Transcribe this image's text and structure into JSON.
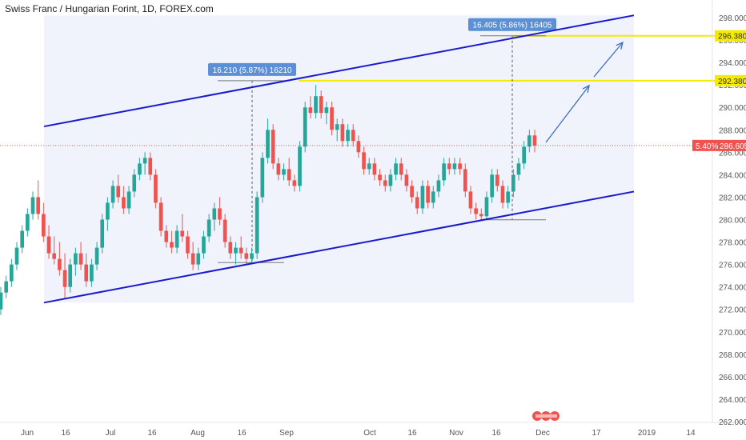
{
  "colors": {
    "up": "#26a69a",
    "down": "#ef5350",
    "channel": "#1a1acd",
    "channel_fill": "#eef2fb",
    "level_line": "#f5ea00",
    "measure_box": "#5b8fd6",
    "current_price": "#ef5350",
    "arrow": "#3b6fc2",
    "axis_text": "#555555"
  },
  "chart_data": {
    "type": "candlestick",
    "title": "Swiss Franc / Hungarian Forint, 1D, FOREX.com",
    "ylim": [
      261,
      299
    ],
    "y_ticks": [
      "262.000",
      "264.000",
      "266.000",
      "268.000",
      "270.000",
      "272.000",
      "274.000",
      "276.000",
      "278.000",
      "280.000",
      "282.000",
      "284.000",
      "286.000",
      "288.000",
      "290.000",
      "292.000",
      "294.000",
      "296.000",
      "298.000"
    ],
    "x_ticks": [
      "Jun",
      "16",
      "Jul",
      "16",
      "Aug",
      "16",
      "Sep",
      "Oct",
      "16",
      "Nov",
      "16",
      "Dec",
      "17",
      "2019",
      "14"
    ],
    "current_price": {
      "value": 286.605,
      "label": "286.605",
      "change_label": "5.40%"
    },
    "levels": [
      {
        "value": 296.38,
        "label": "296.380"
      },
      {
        "value": 292.38,
        "label": "292.380"
      }
    ],
    "measurements": [
      {
        "label": "16.210 (5.87%) 16210",
        "from": 276.17,
        "to": 292.38
      },
      {
        "label": "16.405 (5.86%) 16405",
        "from": 279.98,
        "to": 296.38
      }
    ],
    "channel": {
      "upper": [
        {
          "x": "Jun 11",
          "y": 288.3
        },
        {
          "x": "Dec 27",
          "y": 298.2
        }
      ],
      "lower": [
        {
          "x": "Jun 11",
          "y": 272.6
        },
        {
          "x": "Dec 27",
          "y": 282.5
        }
      ]
    },
    "candles": [
      {
        "o": 272.0,
        "h": 274.0,
        "l": 271.5,
        "c": 273.5
      },
      {
        "o": 273.5,
        "h": 275.0,
        "l": 273.0,
        "c": 274.5
      },
      {
        "o": 274.5,
        "h": 276.5,
        "l": 274.0,
        "c": 276.0
      },
      {
        "o": 276.0,
        "h": 278.0,
        "l": 275.5,
        "c": 277.5
      },
      {
        "o": 277.5,
        "h": 279.5,
        "l": 277.0,
        "c": 279.0
      },
      {
        "o": 279.0,
        "h": 281.0,
        "l": 278.5,
        "c": 280.5
      },
      {
        "o": 280.5,
        "h": 282.5,
        "l": 280.0,
        "c": 282.0
      },
      {
        "o": 282.0,
        "h": 283.5,
        "l": 280.0,
        "c": 280.5
      },
      {
        "o": 280.5,
        "h": 281.5,
        "l": 278.0,
        "c": 278.5
      },
      {
        "o": 278.5,
        "h": 279.5,
        "l": 276.5,
        "c": 277.0
      },
      {
        "o": 277.0,
        "h": 278.5,
        "l": 276.0,
        "c": 276.5
      },
      {
        "o": 276.5,
        "h": 278.0,
        "l": 275.0,
        "c": 275.5
      },
      {
        "o": 275.5,
        "h": 277.0,
        "l": 273.0,
        "c": 274.0
      },
      {
        "o": 274.0,
        "h": 276.5,
        "l": 273.5,
        "c": 276.0
      },
      {
        "o": 276.0,
        "h": 277.5,
        "l": 275.0,
        "c": 277.0
      },
      {
        "o": 277.0,
        "h": 278.0,
        "l": 275.5,
        "c": 276.0
      },
      {
        "o": 276.0,
        "h": 277.0,
        "l": 274.0,
        "c": 274.5
      },
      {
        "o": 274.5,
        "h": 276.5,
        "l": 274.0,
        "c": 276.0
      },
      {
        "o": 276.0,
        "h": 278.0,
        "l": 275.5,
        "c": 277.5
      },
      {
        "o": 277.5,
        "h": 280.5,
        "l": 277.0,
        "c": 280.0
      },
      {
        "o": 280.0,
        "h": 282.0,
        "l": 279.0,
        "c": 281.5
      },
      {
        "o": 281.5,
        "h": 283.5,
        "l": 281.0,
        "c": 283.0
      },
      {
        "o": 283.0,
        "h": 284.0,
        "l": 281.5,
        "c": 282.0
      },
      {
        "o": 282.0,
        "h": 283.0,
        "l": 280.5,
        "c": 281.0
      },
      {
        "o": 281.0,
        "h": 283.0,
        "l": 280.5,
        "c": 282.5
      },
      {
        "o": 282.5,
        "h": 284.5,
        "l": 282.0,
        "c": 284.0
      },
      {
        "o": 284.0,
        "h": 285.5,
        "l": 283.5,
        "c": 285.0
      },
      {
        "o": 285.0,
        "h": 286.0,
        "l": 284.0,
        "c": 285.5
      },
      {
        "o": 285.5,
        "h": 286.0,
        "l": 283.5,
        "c": 284.0
      },
      {
        "o": 284.0,
        "h": 284.5,
        "l": 281.0,
        "c": 281.5
      },
      {
        "o": 281.5,
        "h": 282.0,
        "l": 278.5,
        "c": 279.0
      },
      {
        "o": 279.0,
        "h": 279.5,
        "l": 277.5,
        "c": 278.0
      },
      {
        "o": 278.0,
        "h": 279.0,
        "l": 277.0,
        "c": 277.5
      },
      {
        "o": 277.5,
        "h": 279.5,
        "l": 277.0,
        "c": 279.0
      },
      {
        "o": 279.0,
        "h": 280.5,
        "l": 278.0,
        "c": 278.5
      },
      {
        "o": 278.5,
        "h": 279.0,
        "l": 276.5,
        "c": 277.0
      },
      {
        "o": 277.0,
        "h": 278.0,
        "l": 275.5,
        "c": 276.0
      },
      {
        "o": 276.0,
        "h": 277.5,
        "l": 275.5,
        "c": 277.0
      },
      {
        "o": 277.0,
        "h": 279.0,
        "l": 276.5,
        "c": 278.5
      },
      {
        "o": 278.5,
        "h": 280.5,
        "l": 278.0,
        "c": 280.0
      },
      {
        "o": 280.0,
        "h": 281.5,
        "l": 279.0,
        "c": 281.0
      },
      {
        "o": 281.0,
        "h": 282.0,
        "l": 279.5,
        "c": 280.0
      },
      {
        "o": 280.0,
        "h": 280.5,
        "l": 277.5,
        "c": 278.0
      },
      {
        "o": 278.0,
        "h": 278.5,
        "l": 276.5,
        "c": 277.0
      },
      {
        "o": 277.0,
        "h": 278.0,
        "l": 276.0,
        "c": 277.5
      },
      {
        "o": 277.5,
        "h": 278.5,
        "l": 276.5,
        "c": 277.0
      },
      {
        "o": 277.0,
        "h": 277.5,
        "l": 276.0,
        "c": 276.5
      },
      {
        "o": 276.5,
        "h": 277.5,
        "l": 276.0,
        "c": 277.0
      },
      {
        "o": 277.0,
        "h": 282.5,
        "l": 276.5,
        "c": 282.0
      },
      {
        "o": 282.0,
        "h": 286.0,
        "l": 281.5,
        "c": 285.5
      },
      {
        "o": 285.5,
        "h": 289.0,
        "l": 285.0,
        "c": 288.0
      },
      {
        "o": 288.0,
        "h": 288.5,
        "l": 284.5,
        "c": 285.0
      },
      {
        "o": 285.0,
        "h": 285.5,
        "l": 283.5,
        "c": 284.0
      },
      {
        "o": 284.0,
        "h": 285.0,
        "l": 283.5,
        "c": 284.5
      },
      {
        "o": 284.5,
        "h": 285.5,
        "l": 283.0,
        "c": 283.5
      },
      {
        "o": 283.5,
        "h": 284.0,
        "l": 282.5,
        "c": 283.0
      },
      {
        "o": 283.0,
        "h": 287.0,
        "l": 282.5,
        "c": 286.5
      },
      {
        "o": 286.5,
        "h": 290.5,
        "l": 286.0,
        "c": 290.0
      },
      {
        "o": 290.0,
        "h": 291.0,
        "l": 289.0,
        "c": 289.5
      },
      {
        "o": 289.5,
        "h": 292.0,
        "l": 289.0,
        "c": 291.0
      },
      {
        "o": 291.0,
        "h": 291.5,
        "l": 289.0,
        "c": 289.5
      },
      {
        "o": 289.5,
        "h": 290.5,
        "l": 288.5,
        "c": 290.0
      },
      {
        "o": 290.0,
        "h": 290.5,
        "l": 287.5,
        "c": 288.0
      },
      {
        "o": 288.0,
        "h": 289.0,
        "l": 287.0,
        "c": 288.5
      },
      {
        "o": 288.5,
        "h": 289.0,
        "l": 286.5,
        "c": 287.0
      },
      {
        "o": 287.0,
        "h": 288.5,
        "l": 286.5,
        "c": 288.0
      },
      {
        "o": 288.0,
        "h": 288.5,
        "l": 286.5,
        "c": 287.0
      },
      {
        "o": 287.0,
        "h": 287.5,
        "l": 285.5,
        "c": 286.0
      },
      {
        "o": 286.0,
        "h": 286.5,
        "l": 284.0,
        "c": 284.5
      },
      {
        "o": 284.5,
        "h": 285.5,
        "l": 284.0,
        "c": 285.0
      },
      {
        "o": 285.0,
        "h": 285.5,
        "l": 283.5,
        "c": 284.0
      },
      {
        "o": 284.0,
        "h": 284.5,
        "l": 283.0,
        "c": 283.5
      },
      {
        "o": 283.5,
        "h": 284.0,
        "l": 282.5,
        "c": 283.0
      },
      {
        "o": 283.0,
        "h": 284.5,
        "l": 282.5,
        "c": 284.0
      },
      {
        "o": 284.0,
        "h": 285.5,
        "l": 283.5,
        "c": 285.0
      },
      {
        "o": 285.0,
        "h": 285.5,
        "l": 283.5,
        "c": 284.0
      },
      {
        "o": 284.0,
        "h": 284.5,
        "l": 282.5,
        "c": 283.0
      },
      {
        "o": 283.0,
        "h": 283.5,
        "l": 281.5,
        "c": 282.0
      },
      {
        "o": 282.0,
        "h": 282.5,
        "l": 280.5,
        "c": 281.0
      },
      {
        "o": 281.0,
        "h": 283.5,
        "l": 280.5,
        "c": 283.0
      },
      {
        "o": 283.0,
        "h": 283.5,
        "l": 281.0,
        "c": 281.5
      },
      {
        "o": 281.5,
        "h": 283.0,
        "l": 281.0,
        "c": 282.5
      },
      {
        "o": 282.5,
        "h": 284.0,
        "l": 282.0,
        "c": 283.5
      },
      {
        "o": 283.5,
        "h": 285.5,
        "l": 283.0,
        "c": 285.0
      },
      {
        "o": 285.0,
        "h": 285.5,
        "l": 284.0,
        "c": 284.5
      },
      {
        "o": 284.5,
        "h": 285.5,
        "l": 284.0,
        "c": 285.0
      },
      {
        "o": 285.0,
        "h": 285.5,
        "l": 284.0,
        "c": 284.5
      },
      {
        "o": 284.5,
        "h": 285.0,
        "l": 282.0,
        "c": 282.5
      },
      {
        "o": 282.5,
        "h": 283.0,
        "l": 280.5,
        "c": 281.0
      },
      {
        "o": 281.0,
        "h": 281.5,
        "l": 280.0,
        "c": 280.5
      },
      {
        "o": 280.5,
        "h": 281.0,
        "l": 280.0,
        "c": 280.3
      },
      {
        "o": 280.3,
        "h": 282.5,
        "l": 280.0,
        "c": 282.0
      },
      {
        "o": 282.0,
        "h": 284.5,
        "l": 281.5,
        "c": 284.0
      },
      {
        "o": 284.0,
        "h": 284.5,
        "l": 282.5,
        "c": 283.0
      },
      {
        "o": 283.0,
        "h": 283.5,
        "l": 281.0,
        "c": 281.5
      },
      {
        "o": 281.5,
        "h": 283.0,
        "l": 281.0,
        "c": 282.5
      },
      {
        "o": 282.5,
        "h": 284.5,
        "l": 282.0,
        "c": 284.0
      },
      {
        "o": 284.0,
        "h": 285.5,
        "l": 283.5,
        "c": 285.0
      },
      {
        "o": 285.0,
        "h": 287.0,
        "l": 284.5,
        "c": 286.5
      },
      {
        "o": 286.5,
        "h": 288.0,
        "l": 286.0,
        "c": 287.5
      },
      {
        "o": 287.5,
        "h": 288.0,
        "l": 286.0,
        "c": 286.6
      }
    ]
  }
}
